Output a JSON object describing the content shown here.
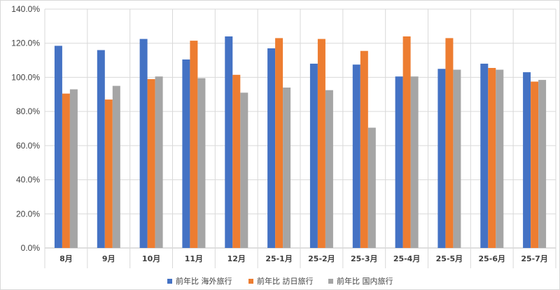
{
  "chart_data": {
    "type": "bar",
    "categories": [
      "8月",
      "9月",
      "10月",
      "11月",
      "12月",
      "25-1月",
      "25-2月",
      "25-3月",
      "25-4月",
      "25-5月",
      "25-6月",
      "25-7月"
    ],
    "series": [
      {
        "name": "前年比 海外旅行",
        "color": "#4472C4",
        "values": [
          118.5,
          116.0,
          122.5,
          110.5,
          124.0,
          117.0,
          108.0,
          107.5,
          100.5,
          105.0,
          108.0,
          103.0
        ]
      },
      {
        "name": "前年比 訪日旅行",
        "color": "#ED7D31",
        "values": [
          90.5,
          87.0,
          99.0,
          121.5,
          101.5,
          123.0,
          122.5,
          115.5,
          124.0,
          123.0,
          105.5,
          97.5
        ]
      },
      {
        "name": "前年比 国内旅行",
        "color": "#A5A5A5",
        "values": [
          93.0,
          95.0,
          100.5,
          99.5,
          91.0,
          94.0,
          92.5,
          70.5,
          100.5,
          104.5,
          104.5,
          98.5
        ]
      }
    ],
    "yticks": [
      "0.0%",
      "20.0%",
      "40.0%",
      "60.0%",
      "80.0%",
      "100.0%",
      "120.0%",
      "140.0%"
    ],
    "ylim": [
      0,
      140
    ],
    "grid": true,
    "legend": "bottom"
  }
}
